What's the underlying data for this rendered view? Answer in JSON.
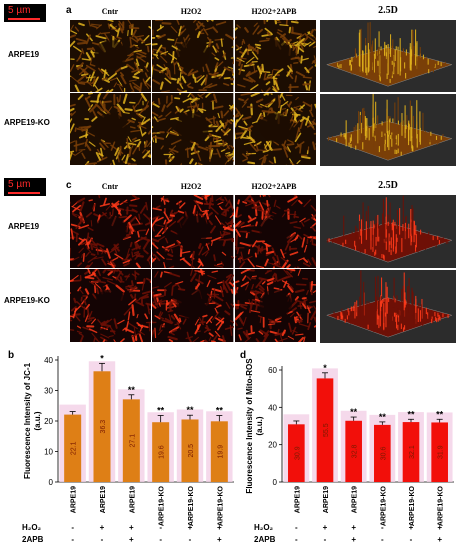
{
  "scalebar_top": "5 µm",
  "scalebar_bottom": "5 µm",
  "panel_a": {
    "letter": "a",
    "columns": [
      "Cntr",
      "H2O2",
      "H2O2+2APB"
    ],
    "col_3d": "2.5D",
    "rows": [
      "ARPE19",
      "ARPE19-KO"
    ],
    "colors": {
      "bg": "#1c0d02",
      "base": "#7a3f08",
      "hi": "#e1b21c"
    }
  },
  "panel_c": {
    "letter": "c",
    "columns": [
      "Cntr",
      "H2O2",
      "H2O2+2APB"
    ],
    "col_3d": "2.5D",
    "rows": [
      "ARPE19",
      "ARPE19-KO"
    ],
    "colors": {
      "bg": "#140404",
      "base": "#6e1006",
      "hi": "#ff3a1a"
    }
  },
  "chart_data": [
    {
      "type": "bar",
      "letter": "b",
      "ylabel_lines": [
        "Fluorescence Intensity of  JC-1",
        "(a.u.)"
      ],
      "categories": [
        "ARPE19",
        "ARPE19",
        "ARPE19",
        "ARPE19-KO",
        "ARPE19-KO",
        "ARPE19-KO"
      ],
      "values": [
        22.1,
        36.3,
        27.1,
        19.6,
        20.5,
        19.9
      ],
      "value_labels": [
        "22.1",
        "36.3",
        "27.1",
        "19.6",
        "20.5",
        "19.9"
      ],
      "errors": [
        1.0,
        2.6,
        1.5,
        2.2,
        1.4,
        1.9
      ],
      "significance": [
        "",
        "*",
        "**",
        "**",
        "**",
        "**"
      ],
      "ylim": [
        0,
        40
      ],
      "yticks": [
        "0",
        "10",
        "20",
        "30",
        "40"
      ],
      "h2o2_label": "H₂O₂",
      "apb_label": "2APB",
      "h2o2_signs": [
        "-",
        "+",
        "+",
        "-",
        "+",
        "+"
      ],
      "apb_signs": [
        "-",
        "-",
        "+",
        "-",
        "-",
        "+"
      ],
      "bar_color": "#de7f16",
      "shade_color": "#f2d0e6"
    },
    {
      "type": "bar",
      "letter": "d",
      "ylabel_lines": [
        "Fluorescence Intensity of  Mito-ROS",
        "(a.u.)"
      ],
      "categories": [
        "ARPE19",
        "ARPE19",
        "ARPE19",
        "ARPE19-KO",
        "ARPE19-KO",
        "ARPE19-KO"
      ],
      "values": [
        30.9,
        55.5,
        32.8,
        30.6,
        32.1,
        31.9
      ],
      "value_labels": [
        "30.9",
        "55.5",
        "32.8",
        "30.6",
        "32.1",
        "31.9"
      ],
      "errors": [
        1.8,
        3.0,
        2.0,
        1.6,
        1.5,
        1.7
      ],
      "significance": [
        "",
        "*",
        "**",
        "**",
        "**",
        "**"
      ],
      "ylim": [
        0,
        60
      ],
      "yticks": [
        "0",
        "20",
        "40",
        "60"
      ],
      "h2o2_label": "H₂O₂",
      "apb_label": "2APB",
      "h2o2_signs": [
        "-",
        "+",
        "+",
        "-",
        "+",
        "+"
      ],
      "apb_signs": [
        "-",
        "-",
        "+",
        "-",
        "-",
        "+"
      ],
      "bar_color": "#f20f0a",
      "shade_color": "#f2d0e6"
    }
  ]
}
